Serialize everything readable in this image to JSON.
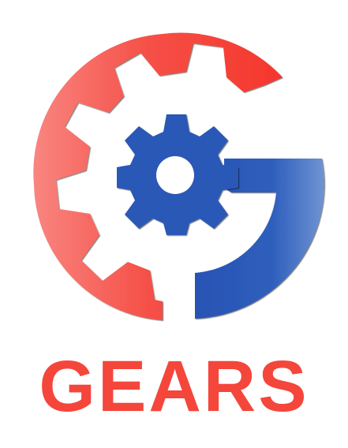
{
  "brand": {
    "name": "GEARS",
    "colors": {
      "red_light": "#f87d78",
      "red": "#f4463b",
      "red_dark": "#f5362c",
      "blue": "#2c5bb8",
      "blue_light": "#6e8fd0",
      "blue_gear": "#2b58b6",
      "outline": "#1c1c1c"
    },
    "icons": [
      "gear-logo-icon"
    ]
  }
}
